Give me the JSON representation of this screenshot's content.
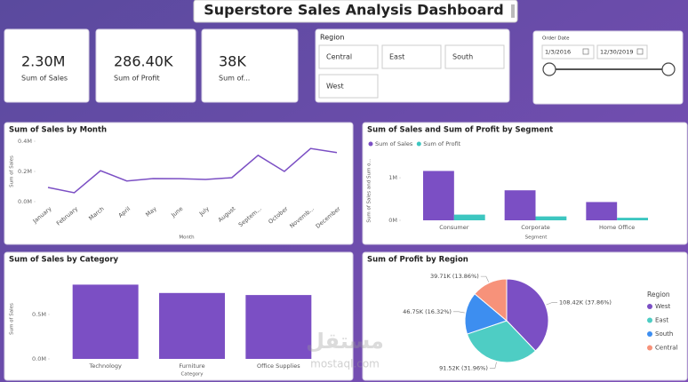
{
  "header": {
    "title": "Superstore Sales Analysis Dashboard"
  },
  "kpis": [
    {
      "value": "2.30M",
      "label": "Sum of Sales"
    },
    {
      "value": "286.40K",
      "label": "Sum of Profit"
    },
    {
      "value": "38K",
      "label": "Sum of..."
    }
  ],
  "region_slicer": {
    "title": "Region",
    "options": [
      "Central",
      "East",
      "South",
      "West"
    ]
  },
  "date_slicer": {
    "title": "Order Date",
    "start": "1/3/2016",
    "end": "12/30/2019"
  },
  "watermark": {
    "arabic": "مستقل",
    "latin": "mostaql.com"
  },
  "chart_data": [
    {
      "type": "line",
      "title": "Sum of Sales by Month",
      "x_label": "Month",
      "y_label": "Sum of Sales",
      "categories": [
        "January",
        "February",
        "March",
        "April",
        "May",
        "June",
        "July",
        "August",
        "Septem...",
        "October",
        "Novemb...",
        "December"
      ],
      "values": [
        94000,
        59000,
        205000,
        137000,
        153000,
        152000,
        147000,
        159000,
        307000,
        200000,
        352000,
        325000
      ],
      "color": "#7b4fc4",
      "ylim": [
        0,
        400000
      ],
      "yticks": [
        {
          "value": 0,
          "label": "0.0M"
        },
        {
          "value": 200000,
          "label": "0.2M"
        },
        {
          "value": 400000,
          "label": "0.4M"
        }
      ],
      "grid": false
    },
    {
      "type": "bar",
      "title": "Sum of Sales and Sum of Profit by Segment",
      "x_label": "Segment",
      "y_label": "Sum of Sales and Sum o...",
      "categories": [
        "Consumer",
        "Corporate",
        "Home Office"
      ],
      "series": [
        {
          "name": "Sum of Sales",
          "color": "#7b4fc4",
          "values": [
            1161000,
            706000,
            430000
          ]
        },
        {
          "name": "Sum of Profit",
          "color": "#3cc6c0",
          "values": [
            134000,
            92000,
            60000
          ]
        }
      ],
      "ylim": [
        0,
        1400000
      ],
      "yticks": [
        {
          "value": 0,
          "label": "0M"
        },
        {
          "value": 1000000,
          "label": "1M"
        }
      ],
      "legend": "top-left",
      "grid": false
    },
    {
      "type": "bar",
      "title": "Sum of Sales by Category",
      "x_label": "Category",
      "y_label": "Sum of Sales",
      "categories": [
        "Technology",
        "Furniture",
        "Office Supplies"
      ],
      "values": [
        836000,
        742000,
        719000
      ],
      "color": "#7b4fc4",
      "ylim": [
        0,
        900000
      ],
      "yticks": [
        {
          "value": 0,
          "label": "0.0M"
        },
        {
          "value": 500000,
          "label": "0.5M"
        }
      ],
      "grid": false
    },
    {
      "type": "pie",
      "title": "Sum of Profit by Region",
      "legend_title": "Region",
      "categories": [
        "West",
        "East",
        "South",
        "Central"
      ],
      "values": [
        108420,
        91520,
        46750,
        39710
      ],
      "value_labels": [
        "108.42K (37.86%)",
        "91.52K (31.96%)",
        "46.75K (16.32%)",
        "39.71K (13.86%)"
      ],
      "colors": [
        "#7b4fc4",
        "#4ecdc4",
        "#3d8ef0",
        "#f7927a"
      ],
      "legend": "right"
    }
  ]
}
